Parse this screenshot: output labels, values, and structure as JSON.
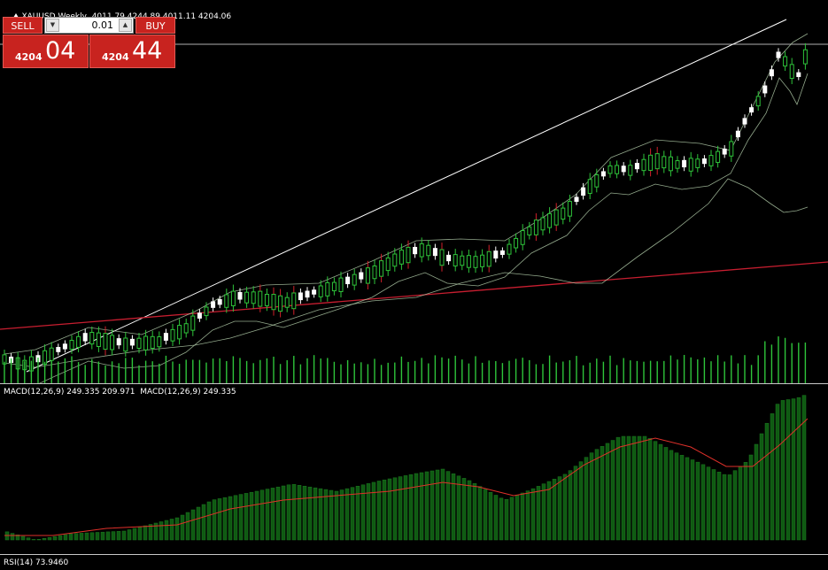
{
  "chart": {
    "symbol_timeframe": "XAUUSD,Weekly",
    "ohlc": "4011.79 4244.89 4011.11 4204.06"
  },
  "trade_panel": {
    "sell_label": "SELL",
    "buy_label": "BUY",
    "lot_value": "0.01",
    "sell_price_prefix": "4204",
    "sell_price_pips": "04",
    "buy_price_prefix": "4204",
    "buy_price_pips": "44"
  },
  "macd": {
    "label": "MACD(12,26,9) 249.335 209.971  MACD(12,26,9) 249.335"
  },
  "rsi": {
    "label": "RSI(14) 73.9460"
  },
  "colors": {
    "background": "#000000",
    "bull_candle": "#2ec43a",
    "bear_candle": "#ffffff",
    "red_wick": "#d0202a",
    "band": "#b9d4b0",
    "volume": "#2ec43a",
    "macd_hist": "#0f5a12",
    "macd_signal": "#e0302a",
    "trendline_white": "#ffffff",
    "trendline_red": "#c81e30",
    "price_line": "#b0b0b0",
    "sell_buy": "#c8231f"
  }
}
